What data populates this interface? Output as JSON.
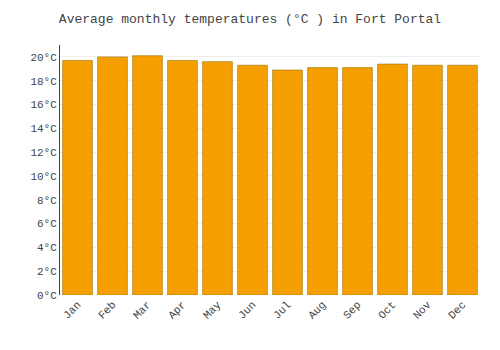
{
  "chart_data": {
    "type": "bar",
    "title": "Average monthly temperatures (°C ) in Fort Portal",
    "categories": [
      "Jan",
      "Feb",
      "Mar",
      "Apr",
      "May",
      "Jun",
      "Jul",
      "Aug",
      "Sep",
      "Oct",
      "Nov",
      "Dec"
    ],
    "values": [
      19.7,
      20.0,
      20.1,
      19.7,
      19.6,
      19.3,
      18.9,
      19.1,
      19.1,
      19.4,
      19.3,
      19.3
    ],
    "color": "#F5A000",
    "ylim": [
      0,
      21
    ],
    "yticks": [
      {
        "value": 0,
        "label": "0°C"
      },
      {
        "value": 2,
        "label": "2°C"
      },
      {
        "value": 4,
        "label": "4°C"
      },
      {
        "value": 6,
        "label": "6°C"
      },
      {
        "value": 8,
        "label": "8°C"
      },
      {
        "value": 10,
        "label": "10°C"
      },
      {
        "value": 12,
        "label": "12°C"
      },
      {
        "value": 14,
        "label": "14°C"
      },
      {
        "value": 16,
        "label": "16°C"
      },
      {
        "value": 18,
        "label": "18°C"
      },
      {
        "value": 20,
        "label": "20°C"
      }
    ],
    "grid": true
  }
}
